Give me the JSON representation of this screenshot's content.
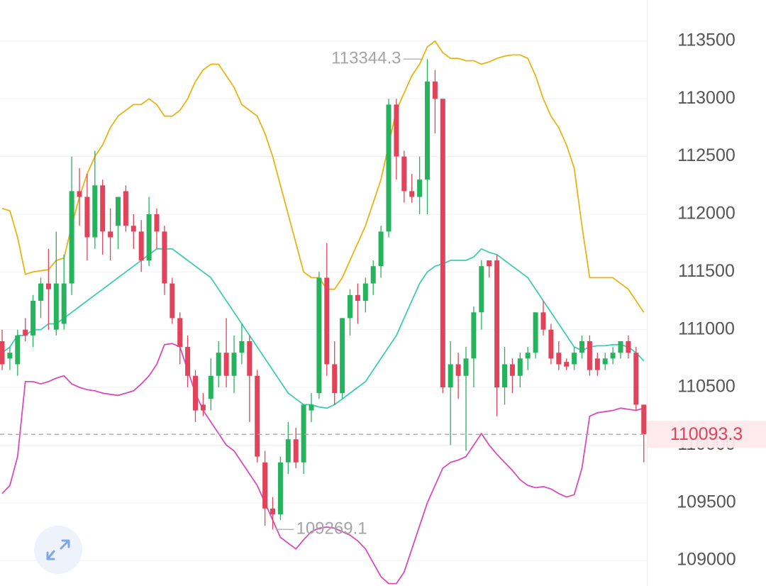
{
  "chart_data": {
    "type": "candlestick",
    "ylim": [
      108779,
      113856
    ],
    "yticks": [
      109000,
      109500,
      110000,
      110500,
      111000,
      111500,
      112000,
      112500,
      113000,
      113500
    ],
    "grid": true,
    "up_color": "#27b35e",
    "down_color": "#e0435a",
    "open": [
      110900,
      110750,
      110700,
      111000,
      110950,
      111250,
      111400,
      111000,
      111050,
      111400,
      112200,
      112150,
      111800,
      112250,
      111850,
      111900,
      112200,
      111900,
      111850,
      111600,
      112000,
      111850,
      111400,
      111100,
      110850,
      110600,
      110350,
      110400,
      110600,
      110800,
      110600,
      110800,
      110900,
      110600,
      109850,
      109450,
      109400,
      109850,
      110050,
      109850,
      110300,
      110450,
      111450,
      110700,
      110450,
      111100,
      111300,
      111250,
      111400,
      111550,
      111850,
      112950,
      112500,
      112200,
      112150,
      112300,
      113150,
      113000,
      110500,
      110700,
      110600,
      110750,
      111150,
      111600,
      111600,
      110500,
      110700,
      110600,
      110750,
      110800,
      111150,
      111000,
      110800,
      110720,
      110700,
      110800,
      110900,
      110750,
      110700,
      110750,
      110800,
      110900,
      110800,
      110350
    ],
    "high": [
      111000,
      110850,
      111000,
      111100,
      111300,
      111450,
      111700,
      111850,
      111650,
      112500,
      112400,
      112350,
      112550,
      112300,
      112050,
      112150,
      112250,
      112000,
      111950,
      112150,
      112050,
      111900,
      111450,
      111150,
      110950,
      110650,
      110450,
      110750,
      110900,
      111100,
      110950,
      111050,
      110950,
      110650,
      109950,
      109550,
      109900,
      110200,
      110150,
      110350,
      110450,
      111500,
      111750,
      110900,
      111100,
      111350,
      111400,
      111450,
      111600,
      111900,
      113000,
      113000,
      112550,
      112350,
      112500,
      113344.3,
      113250,
      113000,
      110900,
      110800,
      110850,
      111200,
      111600,
      111600,
      111650,
      110850,
      110750,
      110800,
      110850,
      111150,
      111250,
      111050,
      110900,
      110750,
      110850,
      110950,
      110950,
      110800,
      110800,
      110850,
      110900,
      110950,
      110850,
      110350
    ],
    "low": [
      110650,
      110650,
      110600,
      110900,
      110850,
      111100,
      111000,
      110950,
      111000,
      111300,
      111900,
      111600,
      111700,
      111650,
      111600,
      111700,
      111850,
      111700,
      111500,
      111550,
      111700,
      111300,
      111050,
      110700,
      110500,
      110200,
      110250,
      110300,
      110500,
      110500,
      110450,
      110700,
      110200,
      109850,
      109300,
      109269.1,
      109350,
      109750,
      109800,
      109750,
      110200,
      110400,
      110600,
      110350,
      110400,
      110950,
      111050,
      111150,
      111300,
      111450,
      111800,
      112300,
      112100,
      112100,
      112000,
      112000,
      112700,
      110450,
      110000,
      110400,
      109950,
      110500,
      111000,
      111450,
      110250,
      110350,
      110450,
      110500,
      110650,
      110750,
      110950,
      110700,
      110650,
      110650,
      110650,
      110750,
      110600,
      110600,
      110650,
      110700,
      110750,
      110750,
      110300,
      109850
    ],
    "close": [
      110700,
      110800,
      110950,
      110950,
      111250,
      111400,
      111350,
      111400,
      111400,
      112200,
      112150,
      111800,
      112250,
      111850,
      111800,
      112150,
      111900,
      111850,
      111600,
      112000,
      111850,
      111400,
      111100,
      110850,
      110600,
      110300,
      110300,
      110600,
      110800,
      110600,
      110800,
      110900,
      110600,
      109900,
      109450,
      109400,
      109850,
      110050,
      109850,
      110350,
      110350,
      111450,
      110700,
      110450,
      111100,
      111300,
      111250,
      111400,
      111550,
      111850,
      112950,
      112500,
      112200,
      112150,
      112300,
      113150,
      113000,
      110500,
      110700,
      110600,
      110750,
      111150,
      111550,
      111550,
      110500,
      110700,
      110600,
      110750,
      110800,
      111150,
      111000,
      110750,
      110700,
      110680,
      110800,
      110900,
      110650,
      110650,
      110750,
      110800,
      110900,
      110800,
      110350,
      110093.3
    ],
    "bands": [
      {
        "color": "#e8b415",
        "values": [
          112050,
          112030,
          111800,
          111480,
          111500,
          111510,
          111520,
          111600,
          111620,
          111900,
          112150,
          112350,
          112500,
          112600,
          112750,
          112850,
          112900,
          112950,
          112950,
          113000,
          112950,
          112850,
          112850,
          112900,
          113000,
          113150,
          113250,
          113300,
          113300,
          113200,
          113100,
          112950,
          112900,
          112850,
          112700,
          112500,
          112250,
          112000,
          111750,
          111500,
          111450,
          111450,
          111350,
          111350,
          111450,
          111600,
          111750,
          111900,
          112100,
          112300,
          112600,
          112900,
          113050,
          113200,
          113300,
          113450,
          113500,
          113400,
          113350,
          113350,
          113330,
          113330,
          113300,
          113320,
          113350,
          113370,
          113380,
          113380,
          113350,
          113200,
          113000,
          112850,
          112750,
          112600,
          112400,
          111900,
          111450,
          111450,
          111450,
          111450,
          111400,
          111350,
          111250,
          111150
        ]
      },
      {
        "color": "#3ecdaf",
        "values": [
          110800,
          110850,
          110950,
          110950,
          111000,
          111000,
          111050,
          111050,
          111100,
          111150,
          111200,
          111250,
          111300,
          111350,
          111400,
          111450,
          111500,
          111550,
          111600,
          111650,
          111700,
          111700,
          111700,
          111650,
          111600,
          111550,
          111500,
          111450,
          111350,
          111250,
          111150,
          111050,
          110950,
          110850,
          110750,
          110650,
          110550,
          110450,
          110400,
          110350,
          110350,
          110330,
          110320,
          110350,
          110400,
          110450,
          110500,
          110550,
          110650,
          110750,
          110850,
          110950,
          111100,
          111250,
          111400,
          111500,
          111550,
          111570,
          111600,
          111600,
          111600,
          111630,
          111700,
          111670,
          111650,
          111600,
          111550,
          111500,
          111450,
          111350,
          111250,
          111150,
          111050,
          110950,
          110850,
          110820,
          110850,
          110860,
          110860,
          110870,
          110870,
          110850,
          110800,
          110730
        ]
      },
      {
        "color": "#d94bbb",
        "values": [
          109580,
          109650,
          109900,
          110550,
          110550,
          110530,
          110550,
          110580,
          110600,
          110530,
          110500,
          110480,
          110470,
          110450,
          110440,
          110430,
          110450,
          110470,
          110530,
          110600,
          110700,
          110870,
          110880,
          110850,
          110650,
          110450,
          110300,
          110200,
          110100,
          110000,
          109950,
          109850,
          109750,
          109650,
          109500,
          109350,
          109200,
          109150,
          109100,
          109180,
          109250,
          109280,
          109290,
          109280,
          109250,
          109220,
          109170,
          109100,
          108980,
          108860,
          108800,
          108800,
          108900,
          109100,
          109300,
          109500,
          109650,
          109800,
          109850,
          109870,
          109900,
          110000,
          110100,
          110000,
          109920,
          109850,
          109780,
          109700,
          109650,
          109630,
          109640,
          109620,
          109580,
          109550,
          109570,
          109800,
          110250,
          110280,
          110290,
          110300,
          110320,
          110310,
          110300,
          110320
        ]
      }
    ],
    "annotations": [
      {
        "label": "113344.3",
        "value": 113344.3
      },
      {
        "label": "109269.1",
        "value": 109269.1
      }
    ],
    "last_price": {
      "label": "110093.3",
      "value": 110093.3
    }
  }
}
